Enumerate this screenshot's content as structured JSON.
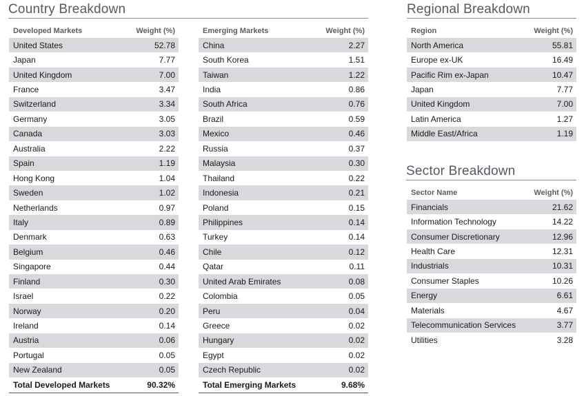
{
  "country_breakdown": {
    "title": "Country Breakdown",
    "developed": {
      "header": [
        "Developed Markets",
        "Weight (%)"
      ],
      "rows": [
        [
          "United States",
          "52.78"
        ],
        [
          "Japan",
          "7.77"
        ],
        [
          "United Kingdom",
          "7.00"
        ],
        [
          "France",
          "3.47"
        ],
        [
          "Switzerland",
          "3.34"
        ],
        [
          "Germany",
          "3.05"
        ],
        [
          "Canada",
          "3.03"
        ],
        [
          "Australia",
          "2.22"
        ],
        [
          "Spain",
          "1.19"
        ],
        [
          "Hong Kong",
          "1.04"
        ],
        [
          "Sweden",
          "1.02"
        ],
        [
          "Netherlands",
          "0.97"
        ],
        [
          "Italy",
          "0.89"
        ],
        [
          "Denmark",
          "0.63"
        ],
        [
          "Belgium",
          "0.46"
        ],
        [
          "Singapore",
          "0.44"
        ],
        [
          "Finland",
          "0.30"
        ],
        [
          "Israel",
          "0.22"
        ],
        [
          "Norway",
          "0.20"
        ],
        [
          "Ireland",
          "0.14"
        ],
        [
          "Austria",
          "0.06"
        ],
        [
          "Portugal",
          "0.05"
        ],
        [
          "New Zealand",
          "0.05"
        ]
      ],
      "total": [
        "Total Developed Markets",
        "90.32%"
      ]
    },
    "emerging": {
      "header": [
        "Emerging Markets",
        "Weight (%)"
      ],
      "rows": [
        [
          "China",
          "2.27"
        ],
        [
          "South Korea",
          "1.51"
        ],
        [
          "Taiwan",
          "1.22"
        ],
        [
          "India",
          "0.86"
        ],
        [
          "South Africa",
          "0.76"
        ],
        [
          "Brazil",
          "0.59"
        ],
        [
          "Mexico",
          "0.46"
        ],
        [
          "Russia",
          "0.37"
        ],
        [
          "Malaysia",
          "0.30"
        ],
        [
          "Thailand",
          "0.22"
        ],
        [
          "Indonesia",
          "0.21"
        ],
        [
          "Poland",
          "0.15"
        ],
        [
          "Philippines",
          "0.14"
        ],
        [
          "Turkey",
          "0.14"
        ],
        [
          "Chile",
          "0.12"
        ],
        [
          "Qatar",
          "0.11"
        ],
        [
          "United Arab Emirates",
          "0.08"
        ],
        [
          "Colombia",
          "0.05"
        ],
        [
          "Peru",
          "0.04"
        ],
        [
          "Greece",
          "0.02"
        ],
        [
          "Hungary",
          "0.02"
        ],
        [
          "Egypt",
          "0.02"
        ],
        [
          "Czech Republic",
          "0.02"
        ]
      ],
      "total": [
        "Total Emerging Markets",
        "9.68%"
      ]
    }
  },
  "regional_breakdown": {
    "title": "Regional Breakdown",
    "header": [
      "Region",
      "Weight (%)"
    ],
    "rows": [
      [
        "North America",
        "55.81"
      ],
      [
        "Europe ex-UK",
        "16.49"
      ],
      [
        "Pacific Rim ex-Japan",
        "10.47"
      ],
      [
        "Japan",
        "7.77"
      ],
      [
        "United Kingdom",
        "7.00"
      ],
      [
        "Latin America",
        "1.27"
      ],
      [
        "Middle East/Africa",
        "1.19"
      ]
    ]
  },
  "sector_breakdown": {
    "title": "Sector Breakdown",
    "header": [
      "Sector Name",
      "Weight (%)"
    ],
    "rows": [
      [
        "Financials",
        "21.62"
      ],
      [
        "Information Technology",
        "14.22"
      ],
      [
        "Consumer Discretionary",
        "12.96"
      ],
      [
        "Health Care",
        "12.31"
      ],
      [
        "Industrials",
        "10.31"
      ],
      [
        "Consumer Staples",
        "10.26"
      ],
      [
        "Energy",
        "6.61"
      ],
      [
        "Materials",
        "4.67"
      ],
      [
        "Telecommunication Services",
        "3.77"
      ],
      [
        "Utilities",
        "3.28"
      ]
    ]
  },
  "colors": {
    "row_shade": "#d8d9dc",
    "title_text": "#555a62",
    "rule": "#8a8f96"
  }
}
